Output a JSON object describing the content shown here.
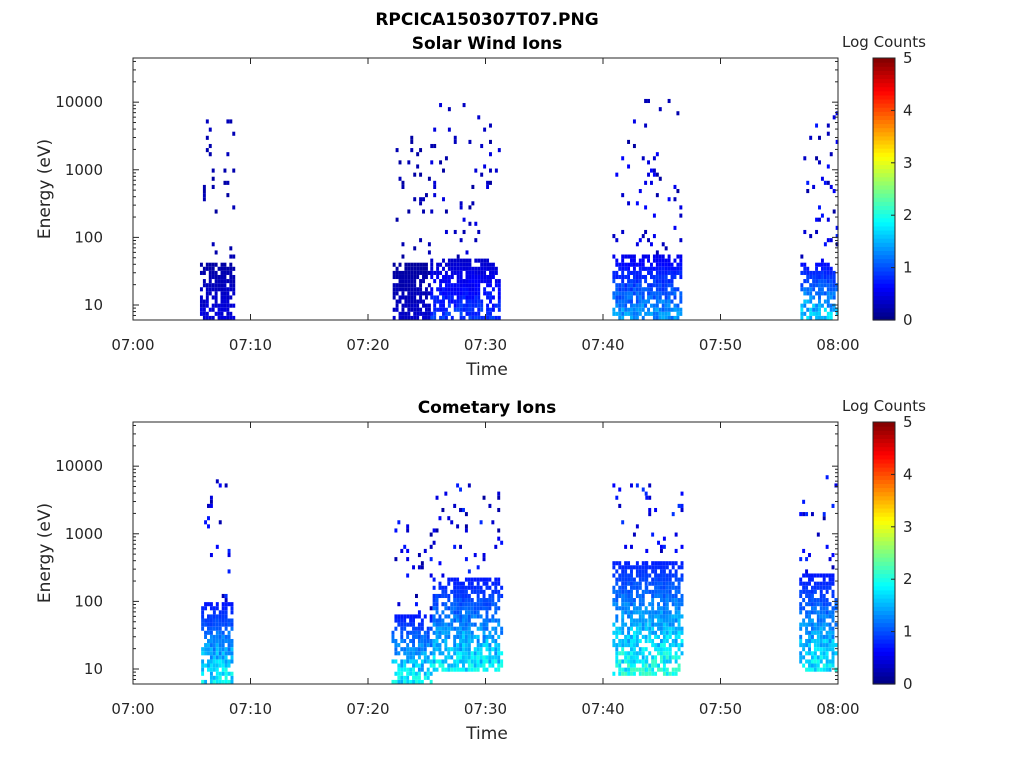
{
  "figure": {
    "title": "RPCICA150307T07.PNG"
  },
  "colorbar": {
    "label": "Log Counts",
    "min": 0,
    "max": 5,
    "ticks": [
      "0",
      "1",
      "2",
      "3",
      "4",
      "5"
    ],
    "colormap": "jet"
  },
  "chart_data": [
    {
      "type": "heatmap",
      "title": "Solar Wind Ions",
      "xlabel": "Time",
      "ylabel": "Energy (eV)",
      "y_scale": "log",
      "ylim": [
        6,
        45000
      ],
      "xlim": [
        "07:00",
        "08:00"
      ],
      "x_ticks": [
        "07:00",
        "07:10",
        "07:20",
        "07:30",
        "07:40",
        "07:50",
        "08:00"
      ],
      "y_ticks": [
        "10",
        "100",
        "1000",
        "10000"
      ],
      "y_tick_values": [
        10,
        100,
        1000,
        10000
      ],
      "bursts": [
        {
          "t_start": 5.7,
          "t_end": 8.6,
          "low_band": [
            6,
            40
          ],
          "sparse_upto": 5000,
          "peak_log_counts": 0.5
        },
        {
          "t_start": 22.1,
          "t_end": 25.3,
          "low_band": [
            6,
            40
          ],
          "sparse_upto": 3000,
          "peak_log_counts": 0.4
        },
        {
          "t_start": 25.3,
          "t_end": 31.3,
          "low_band": [
            6,
            45
          ],
          "sparse_upto": 9500,
          "peak_log_counts": 1.0
        },
        {
          "t_start": 40.8,
          "t_end": 43.5,
          "low_band": [
            6,
            50
          ],
          "sparse_upto": 5000,
          "peak_log_counts": 1.5
        },
        {
          "t_start": 43.5,
          "t_end": 46.6,
          "low_band": [
            6,
            50
          ],
          "sparse_upto": 10000,
          "peak_log_counts": 1.5
        },
        {
          "t_start": 56.8,
          "t_end": 59.9,
          "low_band": [
            6,
            40
          ],
          "sparse_upto": 7000,
          "peak_log_counts": 1.8
        }
      ]
    },
    {
      "type": "heatmap",
      "title": "Cometary Ions",
      "xlabel": "Time",
      "ylabel": "Energy (eV)",
      "y_scale": "log",
      "ylim": [
        6,
        45000
      ],
      "xlim": [
        "07:00",
        "08:00"
      ],
      "x_ticks": [
        "07:00",
        "07:10",
        "07:20",
        "07:30",
        "07:40",
        "07:50",
        "08:00"
      ],
      "y_ticks": [
        "10",
        "100",
        "1000",
        "10000"
      ],
      "y_tick_values": [
        10,
        100,
        1000,
        10000
      ],
      "bursts": [
        {
          "t_start": 5.8,
          "t_end": 8.5,
          "low_band": [
            6,
            90
          ],
          "sparse_upto": 7000,
          "peak_log_counts": 2.0
        },
        {
          "t_start": 22.0,
          "t_end": 25.5,
          "low_band": [
            6,
            60
          ],
          "sparse_upto": 1500,
          "peak_log_counts": 2.0
        },
        {
          "t_start": 25.5,
          "t_end": 31.5,
          "low_band": [
            8,
            220
          ],
          "sparse_upto": 5000,
          "peak_log_counts": 2.0
        },
        {
          "t_start": 40.8,
          "t_end": 43.6,
          "low_band": [
            7,
            350
          ],
          "sparse_upto": 5000,
          "peak_log_counts": 2.2
        },
        {
          "t_start": 43.6,
          "t_end": 46.8,
          "low_band": [
            7,
            350
          ],
          "sparse_upto": 5500,
          "peak_log_counts": 2.2
        },
        {
          "t_start": 56.7,
          "t_end": 59.9,
          "low_band": [
            8,
            250
          ],
          "sparse_upto": 7000,
          "peak_log_counts": 2.0
        }
      ]
    }
  ]
}
